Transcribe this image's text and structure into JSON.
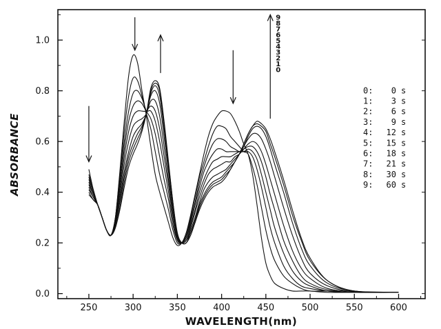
{
  "chart_data": {
    "type": "line",
    "xlabel": "WAVELENGTH(nm)",
    "ylabel": "ABSORBANCE",
    "xlim": [
      215,
      630
    ],
    "ylim": [
      -0.02,
      1.12
    ],
    "grid": false,
    "x_ticks": [
      250,
      300,
      350,
      400,
      450,
      500,
      550,
      600
    ],
    "y_ticks": [
      0.0,
      0.2,
      0.4,
      0.6,
      0.8,
      1.0
    ],
    "x_tick_labels": [
      "250",
      "300",
      "350",
      "400",
      "450",
      "500",
      "550",
      "600"
    ],
    "y_tick_labels": [
      "0.0",
      "0.2",
      "0.4",
      "0.6",
      "0.8",
      "1.0"
    ],
    "series": [
      {
        "label": "0",
        "x": [
          250,
          255,
          260,
          265,
          270,
          275,
          280,
          285,
          290,
          295,
          300,
          305,
          310,
          315,
          320,
          325,
          330,
          335,
          340,
          345,
          350,
          355,
          360,
          365,
          370,
          375,
          380,
          385,
          390,
          395,
          400,
          405,
          410,
          415,
          420,
          425,
          430,
          435,
          440,
          445,
          450,
          455,
          460,
          470,
          480,
          490,
          500,
          520,
          550,
          600
        ],
        "y": [
          0.39,
          0.37,
          0.35,
          0.3,
          0.25,
          0.23,
          0.3,
          0.48,
          0.68,
          0.86,
          0.94,
          0.91,
          0.8,
          0.7,
          0.58,
          0.47,
          0.4,
          0.34,
          0.28,
          0.22,
          0.19,
          0.2,
          0.24,
          0.31,
          0.39,
          0.47,
          0.55,
          0.62,
          0.67,
          0.7,
          0.72,
          0.72,
          0.71,
          0.68,
          0.64,
          0.59,
          0.55,
          0.47,
          0.35,
          0.22,
          0.12,
          0.07,
          0.04,
          0.02,
          0.01,
          0.01,
          0.01,
          0.005,
          0.005,
          0.005
        ]
      },
      {
        "label": "1",
        "x": [
          250,
          255,
          260,
          265,
          270,
          275,
          280,
          285,
          290,
          295,
          300,
          305,
          310,
          315,
          320,
          325,
          330,
          335,
          340,
          345,
          350,
          355,
          360,
          365,
          370,
          375,
          380,
          385,
          390,
          395,
          400,
          405,
          410,
          415,
          420,
          425,
          430,
          435,
          440,
          445,
          450,
          455,
          460,
          470,
          480,
          490,
          500,
          520,
          550,
          600
        ],
        "y": [
          0.4,
          0.37,
          0.35,
          0.3,
          0.25,
          0.23,
          0.3,
          0.47,
          0.64,
          0.78,
          0.85,
          0.84,
          0.78,
          0.71,
          0.65,
          0.56,
          0.47,
          0.4,
          0.33,
          0.25,
          0.2,
          0.2,
          0.23,
          0.3,
          0.38,
          0.46,
          0.52,
          0.58,
          0.63,
          0.66,
          0.66,
          0.65,
          0.62,
          0.6,
          0.58,
          0.56,
          0.55,
          0.5,
          0.43,
          0.34,
          0.25,
          0.18,
          0.13,
          0.07,
          0.04,
          0.02,
          0.01,
          0.01,
          0.005,
          0.005
        ]
      },
      {
        "label": "2",
        "x": [
          250,
          255,
          260,
          265,
          270,
          275,
          280,
          285,
          290,
          295,
          300,
          305,
          310,
          315,
          320,
          325,
          330,
          335,
          340,
          345,
          350,
          355,
          360,
          365,
          370,
          375,
          380,
          385,
          390,
          395,
          400,
          405,
          410,
          415,
          420,
          425,
          430,
          435,
          440,
          445,
          450,
          455,
          460,
          470,
          480,
          490,
          500,
          520,
          550,
          600
        ],
        "y": [
          0.41,
          0.38,
          0.35,
          0.3,
          0.25,
          0.23,
          0.3,
          0.45,
          0.6,
          0.72,
          0.79,
          0.8,
          0.77,
          0.72,
          0.69,
          0.63,
          0.54,
          0.45,
          0.37,
          0.27,
          0.21,
          0.2,
          0.23,
          0.29,
          0.36,
          0.44,
          0.5,
          0.55,
          0.59,
          0.61,
          0.61,
          0.6,
          0.58,
          0.57,
          0.56,
          0.56,
          0.56,
          0.54,
          0.49,
          0.42,
          0.34,
          0.26,
          0.2,
          0.11,
          0.06,
          0.03,
          0.02,
          0.01,
          0.005,
          0.005
        ]
      },
      {
        "label": "3",
        "x": [
          250,
          255,
          260,
          265,
          270,
          275,
          280,
          285,
          290,
          295,
          300,
          305,
          310,
          315,
          320,
          325,
          330,
          335,
          340,
          345,
          350,
          355,
          360,
          365,
          370,
          375,
          380,
          385,
          390,
          395,
          400,
          405,
          410,
          415,
          420,
          425,
          430,
          435,
          440,
          445,
          450,
          455,
          460,
          470,
          480,
          490,
          500,
          520,
          550,
          600
        ],
        "y": [
          0.42,
          0.38,
          0.35,
          0.3,
          0.25,
          0.23,
          0.29,
          0.43,
          0.57,
          0.68,
          0.74,
          0.76,
          0.75,
          0.72,
          0.72,
          0.68,
          0.6,
          0.5,
          0.4,
          0.29,
          0.21,
          0.2,
          0.22,
          0.28,
          0.35,
          0.42,
          0.48,
          0.52,
          0.55,
          0.57,
          0.57,
          0.56,
          0.56,
          0.56,
          0.56,
          0.56,
          0.57,
          0.56,
          0.53,
          0.47,
          0.4,
          0.33,
          0.26,
          0.16,
          0.09,
          0.05,
          0.03,
          0.01,
          0.005,
          0.005
        ]
      },
      {
        "label": "4",
        "x": [
          250,
          255,
          260,
          265,
          270,
          275,
          280,
          285,
          290,
          295,
          300,
          305,
          310,
          315,
          320,
          325,
          330,
          335,
          340,
          345,
          350,
          355,
          360,
          365,
          370,
          375,
          380,
          385,
          390,
          395,
          400,
          405,
          410,
          415,
          420,
          425,
          430,
          435,
          440,
          445,
          450,
          455,
          460,
          470,
          480,
          490,
          500,
          520,
          550,
          600
        ],
        "y": [
          0.43,
          0.39,
          0.35,
          0.3,
          0.25,
          0.23,
          0.28,
          0.41,
          0.54,
          0.64,
          0.7,
          0.72,
          0.72,
          0.72,
          0.74,
          0.72,
          0.65,
          0.54,
          0.43,
          0.31,
          0.22,
          0.2,
          0.22,
          0.27,
          0.33,
          0.4,
          0.45,
          0.49,
          0.52,
          0.53,
          0.54,
          0.54,
          0.54,
          0.55,
          0.56,
          0.57,
          0.58,
          0.58,
          0.56,
          0.52,
          0.46,
          0.39,
          0.33,
          0.21,
          0.13,
          0.07,
          0.04,
          0.015,
          0.005,
          0.005
        ]
      },
      {
        "label": "5",
        "x": [
          250,
          255,
          260,
          265,
          270,
          275,
          280,
          285,
          290,
          295,
          300,
          305,
          310,
          315,
          320,
          325,
          330,
          335,
          340,
          345,
          350,
          355,
          360,
          365,
          370,
          375,
          380,
          385,
          390,
          395,
          400,
          405,
          410,
          415,
          420,
          425,
          430,
          435,
          440,
          445,
          450,
          455,
          460,
          470,
          480,
          490,
          500,
          520,
          550,
          600
        ],
        "y": [
          0.44,
          0.39,
          0.35,
          0.3,
          0.25,
          0.23,
          0.28,
          0.39,
          0.51,
          0.6,
          0.66,
          0.68,
          0.69,
          0.71,
          0.76,
          0.76,
          0.7,
          0.58,
          0.45,
          0.32,
          0.22,
          0.2,
          0.21,
          0.26,
          0.32,
          0.38,
          0.43,
          0.47,
          0.49,
          0.5,
          0.51,
          0.52,
          0.52,
          0.54,
          0.55,
          0.57,
          0.59,
          0.6,
          0.59,
          0.56,
          0.51,
          0.45,
          0.39,
          0.27,
          0.17,
          0.1,
          0.06,
          0.02,
          0.008,
          0.005
        ]
      },
      {
        "label": "6",
        "x": [
          250,
          255,
          260,
          265,
          270,
          275,
          280,
          285,
          290,
          295,
          300,
          305,
          310,
          315,
          320,
          325,
          330,
          335,
          340,
          345,
          350,
          355,
          360,
          365,
          370,
          375,
          380,
          385,
          390,
          395,
          400,
          405,
          410,
          415,
          420,
          425,
          430,
          435,
          440,
          445,
          450,
          455,
          460,
          470,
          480,
          490,
          500,
          520,
          550,
          600
        ],
        "y": [
          0.45,
          0.4,
          0.35,
          0.3,
          0.25,
          0.23,
          0.27,
          0.37,
          0.48,
          0.56,
          0.62,
          0.65,
          0.67,
          0.71,
          0.78,
          0.8,
          0.75,
          0.62,
          0.48,
          0.34,
          0.23,
          0.2,
          0.21,
          0.25,
          0.3,
          0.36,
          0.41,
          0.44,
          0.46,
          0.47,
          0.48,
          0.49,
          0.51,
          0.53,
          0.55,
          0.58,
          0.61,
          0.63,
          0.63,
          0.61,
          0.57,
          0.52,
          0.46,
          0.34,
          0.23,
          0.14,
          0.08,
          0.03,
          0.008,
          0.005
        ]
      },
      {
        "label": "7",
        "x": [
          250,
          255,
          260,
          265,
          270,
          275,
          280,
          285,
          290,
          295,
          300,
          305,
          310,
          315,
          320,
          325,
          330,
          335,
          340,
          345,
          350,
          355,
          360,
          365,
          370,
          375,
          380,
          385,
          390,
          395,
          400,
          405,
          410,
          415,
          420,
          425,
          430,
          435,
          440,
          445,
          450,
          455,
          460,
          470,
          480,
          490,
          500,
          520,
          550,
          600
        ],
        "y": [
          0.46,
          0.4,
          0.35,
          0.3,
          0.25,
          0.23,
          0.27,
          0.36,
          0.46,
          0.54,
          0.59,
          0.63,
          0.66,
          0.71,
          0.79,
          0.82,
          0.78,
          0.65,
          0.5,
          0.35,
          0.23,
          0.2,
          0.21,
          0.24,
          0.29,
          0.35,
          0.39,
          0.42,
          0.44,
          0.45,
          0.46,
          0.48,
          0.5,
          0.52,
          0.55,
          0.58,
          0.62,
          0.65,
          0.66,
          0.65,
          0.62,
          0.57,
          0.51,
          0.4,
          0.28,
          0.18,
          0.11,
          0.04,
          0.01,
          0.005
        ]
      },
      {
        "label": "8",
        "x": [
          250,
          255,
          260,
          265,
          270,
          275,
          280,
          285,
          290,
          295,
          300,
          305,
          310,
          315,
          320,
          325,
          330,
          335,
          340,
          345,
          350,
          355,
          360,
          365,
          370,
          375,
          380,
          385,
          390,
          395,
          400,
          405,
          410,
          415,
          420,
          425,
          430,
          435,
          440,
          445,
          450,
          455,
          460,
          470,
          480,
          490,
          500,
          520,
          550,
          600
        ],
        "y": [
          0.47,
          0.41,
          0.35,
          0.3,
          0.25,
          0.23,
          0.26,
          0.34,
          0.44,
          0.52,
          0.57,
          0.61,
          0.65,
          0.71,
          0.8,
          0.83,
          0.8,
          0.67,
          0.51,
          0.36,
          0.23,
          0.2,
          0.2,
          0.24,
          0.28,
          0.34,
          0.38,
          0.41,
          0.43,
          0.44,
          0.45,
          0.47,
          0.49,
          0.52,
          0.55,
          0.59,
          0.63,
          0.66,
          0.67,
          0.66,
          0.64,
          0.59,
          0.54,
          0.43,
          0.31,
          0.21,
          0.13,
          0.05,
          0.01,
          0.005
        ]
      },
      {
        "label": "9",
        "x": [
          250,
          255,
          260,
          265,
          270,
          275,
          280,
          285,
          290,
          295,
          300,
          305,
          310,
          315,
          320,
          325,
          330,
          335,
          340,
          345,
          350,
          355,
          360,
          365,
          370,
          375,
          380,
          385,
          390,
          395,
          400,
          405,
          410,
          415,
          420,
          425,
          430,
          435,
          440,
          445,
          450,
          455,
          460,
          470,
          480,
          490,
          500,
          520,
          550,
          600
        ],
        "y": [
          0.49,
          0.41,
          0.35,
          0.3,
          0.25,
          0.23,
          0.26,
          0.33,
          0.42,
          0.5,
          0.55,
          0.59,
          0.64,
          0.71,
          0.81,
          0.84,
          0.81,
          0.68,
          0.52,
          0.36,
          0.24,
          0.2,
          0.2,
          0.23,
          0.28,
          0.33,
          0.37,
          0.4,
          0.42,
          0.43,
          0.44,
          0.46,
          0.49,
          0.52,
          0.55,
          0.59,
          0.63,
          0.66,
          0.68,
          0.67,
          0.65,
          0.61,
          0.56,
          0.45,
          0.33,
          0.22,
          0.14,
          0.05,
          0.01,
          0.005
        ]
      }
    ],
    "arrows": [
      {
        "x": 250,
        "direction": "down"
      },
      {
        "x": 302,
        "direction": "down"
      },
      {
        "x": 331,
        "direction": "up"
      },
      {
        "x": 413,
        "direction": "down"
      },
      {
        "x": 455,
        "direction": "up"
      }
    ],
    "curve_order_label": [
      "9",
      "8",
      "7",
      "6",
      "5",
      "4",
      "3",
      "2",
      "1",
      "0"
    ],
    "legend": [
      {
        "index": "0:",
        "time": "0",
        "unit": "s"
      },
      {
        "index": "1:",
        "time": "3",
        "unit": "s"
      },
      {
        "index": "2:",
        "time": "6",
        "unit": "s"
      },
      {
        "index": "3:",
        "time": "9",
        "unit": "s"
      },
      {
        "index": "4:",
        "time": "12",
        "unit": "s"
      },
      {
        "index": "5:",
        "time": "15",
        "unit": "s"
      },
      {
        "index": "6:",
        "time": "18",
        "unit": "s"
      },
      {
        "index": "7:",
        "time": "21",
        "unit": "s"
      },
      {
        "index": "8:",
        "time": "30",
        "unit": "s"
      },
      {
        "index": "9:",
        "time": "60",
        "unit": "s"
      }
    ],
    "legend_placement": "right",
    "colors": {
      "line": "#111111",
      "background": "#ffffff"
    }
  }
}
